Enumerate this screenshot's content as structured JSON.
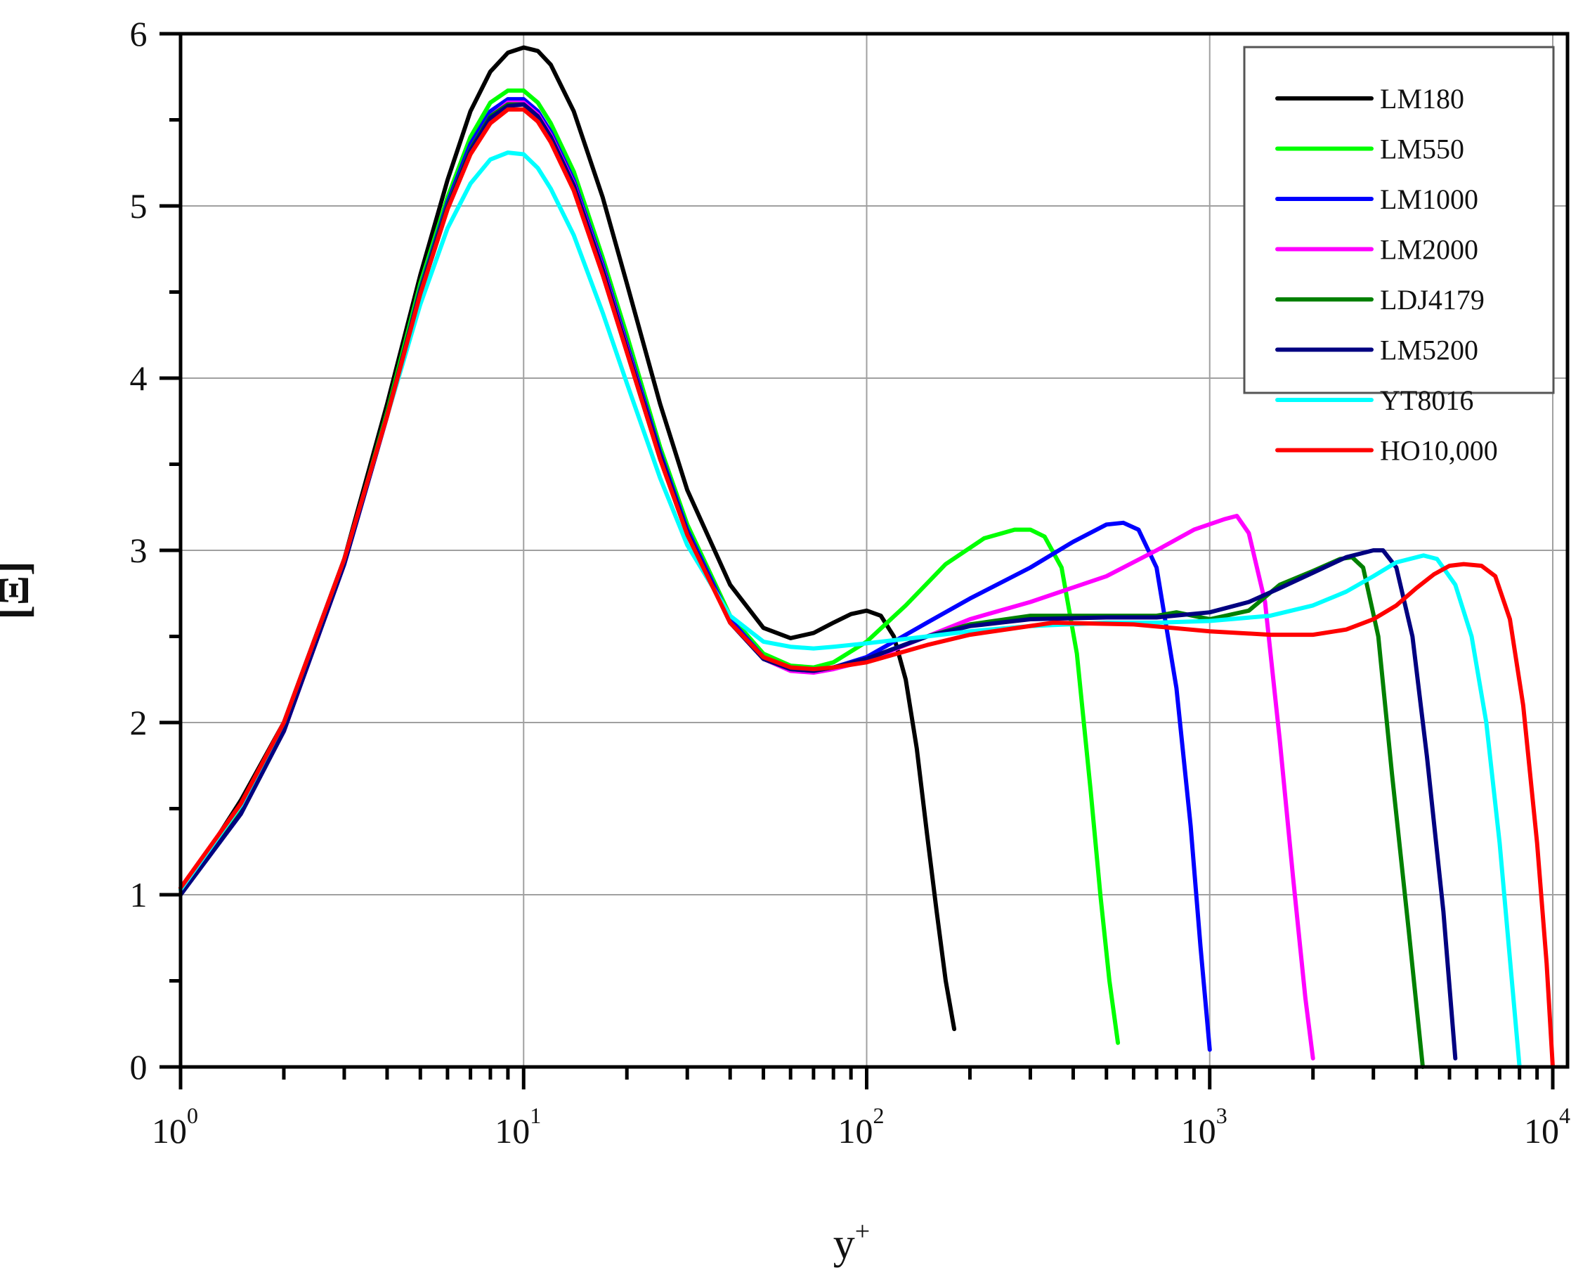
{
  "chart_data": {
    "type": "line",
    "title": "",
    "xlabel": "y",
    "xlabel_superscript": "+",
    "ylabel": "[Ξ]",
    "xscale": "log",
    "xlim": [
      1,
      10000
    ],
    "ylim": [
      0,
      6
    ],
    "grid": true,
    "legend_position": "upper right",
    "x_ticks": [
      {
        "base": "10",
        "exp": "0",
        "value": 1
      },
      {
        "base": "10",
        "exp": "1",
        "value": 10
      },
      {
        "base": "10",
        "exp": "2",
        "value": 100
      },
      {
        "base": "10",
        "exp": "3",
        "value": 1000
      },
      {
        "base": "10",
        "exp": "4",
        "value": 10000
      }
    ],
    "y_ticks": [
      "0",
      "1",
      "2",
      "3",
      "4",
      "5",
      "6"
    ],
    "series": [
      {
        "name": "LM180",
        "color": "#000000",
        "x": [
          1,
          1.5,
          2,
          3,
          4,
          5,
          6,
          7,
          8,
          9,
          10,
          11,
          12,
          14,
          17,
          20,
          25,
          30,
          40,
          50,
          60,
          70,
          80,
          90,
          100,
          110,
          120,
          130,
          140,
          150,
          160,
          170,
          180
        ],
        "y": [
          1.0,
          1.55,
          2.0,
          2.95,
          3.85,
          4.6,
          5.15,
          5.55,
          5.78,
          5.89,
          5.92,
          5.9,
          5.82,
          5.55,
          5.05,
          4.55,
          3.85,
          3.35,
          2.8,
          2.55,
          2.49,
          2.52,
          2.58,
          2.63,
          2.65,
          2.62,
          2.5,
          2.25,
          1.85,
          1.35,
          0.9,
          0.5,
          0.22
        ]
      },
      {
        "name": "LM550",
        "color": "#00ff00",
        "x": [
          1,
          1.5,
          2,
          3,
          4,
          5,
          6,
          7,
          8,
          9,
          10,
          11,
          12,
          14,
          17,
          20,
          25,
          30,
          40,
          50,
          60,
          70,
          80,
          100,
          130,
          170,
          220,
          270,
          300,
          330,
          370,
          410,
          450,
          480,
          510,
          540
        ],
        "y": [
          1.0,
          1.5,
          1.97,
          2.93,
          3.8,
          4.55,
          5.05,
          5.4,
          5.6,
          5.67,
          5.67,
          5.6,
          5.48,
          5.2,
          4.7,
          4.25,
          3.6,
          3.15,
          2.62,
          2.4,
          2.33,
          2.32,
          2.35,
          2.47,
          2.68,
          2.92,
          3.07,
          3.12,
          3.12,
          3.08,
          2.9,
          2.4,
          1.6,
          1.0,
          0.5,
          0.14
        ]
      },
      {
        "name": "LM1000",
        "color": "#0000ff",
        "x": [
          1,
          1.5,
          2,
          3,
          4,
          5,
          6,
          7,
          8,
          9,
          10,
          11,
          12,
          14,
          17,
          20,
          25,
          30,
          40,
          50,
          60,
          70,
          80,
          100,
          150,
          200,
          300,
          400,
          500,
          560,
          620,
          700,
          800,
          880,
          940,
          1000
        ],
        "y": [
          1.0,
          1.48,
          1.95,
          2.92,
          3.78,
          4.52,
          5.02,
          5.36,
          5.55,
          5.62,
          5.62,
          5.55,
          5.43,
          5.15,
          4.66,
          4.2,
          3.57,
          3.12,
          2.6,
          2.38,
          2.31,
          2.3,
          2.32,
          2.38,
          2.58,
          2.72,
          2.9,
          3.05,
          3.15,
          3.16,
          3.12,
          2.9,
          2.2,
          1.4,
          0.7,
          0.1
        ]
      },
      {
        "name": "LM2000",
        "color": "#ff00ff",
        "x": [
          1,
          1.5,
          2,
          3,
          4,
          5,
          6,
          7,
          8,
          9,
          10,
          11,
          12,
          14,
          17,
          20,
          25,
          30,
          40,
          50,
          60,
          70,
          80,
          100,
          150,
          200,
          300,
          500,
          700,
          900,
          1100,
          1200,
          1300,
          1450,
          1600,
          1750,
          1900,
          2000
        ],
        "y": [
          1.0,
          1.48,
          1.95,
          2.92,
          3.78,
          4.5,
          5.0,
          5.33,
          5.52,
          5.6,
          5.6,
          5.53,
          5.41,
          5.13,
          4.64,
          4.18,
          3.55,
          3.1,
          2.58,
          2.37,
          2.3,
          2.29,
          2.31,
          2.36,
          2.5,
          2.6,
          2.7,
          2.85,
          3.0,
          3.12,
          3.18,
          3.2,
          3.1,
          2.7,
          1.9,
          1.1,
          0.4,
          0.05
        ]
      },
      {
        "name": "LDJ4179",
        "color": "#008000",
        "x": [
          1,
          1.5,
          2,
          3,
          4,
          5,
          6,
          7,
          8,
          9,
          10,
          11,
          12,
          14,
          17,
          20,
          25,
          30,
          40,
          50,
          60,
          70,
          80,
          100,
          150,
          200,
          300,
          500,
          700,
          800,
          1000,
          1300,
          1600,
          2000,
          2400,
          2600,
          2800,
          3100,
          3400,
          3800,
          4179
        ],
        "y": [
          1.0,
          1.48,
          1.96,
          2.93,
          3.79,
          4.51,
          5.0,
          5.33,
          5.52,
          5.59,
          5.59,
          5.52,
          5.4,
          5.12,
          4.63,
          4.17,
          3.55,
          3.1,
          2.58,
          2.37,
          2.31,
          2.3,
          2.32,
          2.37,
          2.5,
          2.57,
          2.62,
          2.62,
          2.62,
          2.64,
          2.6,
          2.65,
          2.8,
          2.88,
          2.95,
          2.96,
          2.9,
          2.5,
          1.7,
          0.8,
          0.0
        ]
      },
      {
        "name": "LM5200",
        "color": "#000080",
        "x": [
          1,
          1.5,
          2,
          3,
          4,
          5,
          6,
          7,
          8,
          9,
          10,
          11,
          12,
          14,
          17,
          20,
          25,
          30,
          40,
          50,
          60,
          70,
          80,
          100,
          150,
          200,
          300,
          500,
          700,
          1000,
          1300,
          1600,
          2000,
          2500,
          3000,
          3200,
          3500,
          3900,
          4300,
          4800,
          5200
        ],
        "y": [
          1.0,
          1.47,
          1.95,
          2.92,
          3.78,
          4.5,
          4.99,
          5.32,
          5.51,
          5.58,
          5.59,
          5.52,
          5.4,
          5.12,
          4.63,
          4.17,
          3.55,
          3.1,
          2.58,
          2.37,
          2.31,
          2.3,
          2.32,
          2.37,
          2.5,
          2.56,
          2.6,
          2.61,
          2.61,
          2.64,
          2.7,
          2.78,
          2.87,
          2.96,
          3.0,
          3.0,
          2.9,
          2.5,
          1.8,
          0.9,
          0.05
        ]
      },
      {
        "name": "YT8016",
        "color": "#00ffff",
        "x": [
          1,
          1.5,
          2,
          3,
          4,
          5,
          6,
          7,
          8,
          9,
          10,
          11,
          12,
          14,
          17,
          20,
          25,
          30,
          40,
          50,
          60,
          70,
          80,
          100,
          150,
          200,
          300,
          500,
          700,
          1000,
          1500,
          2000,
          2500,
          3000,
          3500,
          4200,
          4600,
          5200,
          5800,
          6400,
          7000,
          7600,
          8000
        ],
        "y": [
          1.03,
          1.52,
          2.0,
          2.95,
          3.78,
          4.43,
          4.87,
          5.13,
          5.27,
          5.31,
          5.3,
          5.22,
          5.1,
          4.83,
          4.38,
          3.97,
          3.42,
          3.03,
          2.62,
          2.47,
          2.44,
          2.43,
          2.44,
          2.46,
          2.5,
          2.53,
          2.56,
          2.58,
          2.58,
          2.59,
          2.62,
          2.68,
          2.76,
          2.85,
          2.93,
          2.97,
          2.95,
          2.8,
          2.5,
          2.0,
          1.3,
          0.5,
          0.0
        ]
      },
      {
        "name": "HO10,000",
        "color": "#ff0000",
        "x": [
          1,
          1.5,
          2,
          3,
          4,
          5,
          6,
          7,
          8,
          9,
          10,
          11,
          12,
          14,
          17,
          20,
          25,
          30,
          40,
          50,
          60,
          70,
          80,
          100,
          150,
          200,
          350,
          600,
          1000,
          1500,
          2000,
          2500,
          3000,
          3500,
          4000,
          4500,
          5000,
          5500,
          6200,
          6800,
          7500,
          8200,
          9000,
          9600,
          10000
        ],
        "y": [
          1.04,
          1.53,
          2.0,
          2.95,
          3.78,
          4.49,
          4.98,
          5.3,
          5.48,
          5.56,
          5.56,
          5.49,
          5.37,
          5.09,
          4.6,
          4.15,
          3.53,
          3.09,
          2.58,
          2.38,
          2.32,
          2.31,
          2.32,
          2.35,
          2.45,
          2.51,
          2.58,
          2.57,
          2.53,
          2.51,
          2.51,
          2.54,
          2.6,
          2.68,
          2.78,
          2.86,
          2.91,
          2.92,
          2.91,
          2.85,
          2.6,
          2.1,
          1.3,
          0.6,
          0.0
        ]
      }
    ]
  }
}
